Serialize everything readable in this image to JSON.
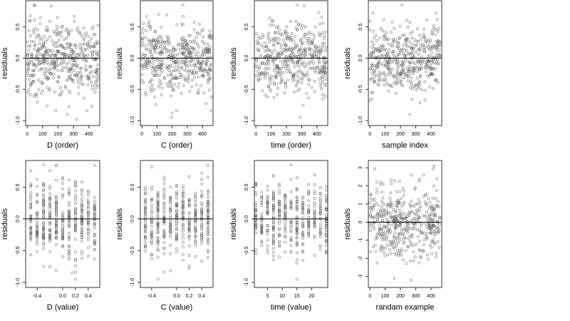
{
  "style": {
    "point_color": "#555555",
    "line_color": "#000000",
    "background": "#ffffff"
  },
  "chart_data": [
    {
      "id": "d-order",
      "type": "scatter",
      "xlabel": "D (order)",
      "ylabel": "residuals",
      "xlim": [
        -10,
        470
      ],
      "ylim": [
        -1.08,
        0.92
      ],
      "xticks": [
        0,
        100,
        200,
        300,
        400
      ],
      "xtick_labels": [
        "0",
        "100",
        "200",
        "300",
        "400"
      ],
      "yticks": [
        -1.0,
        -0.5,
        0.0,
        0.5
      ],
      "ytick_labels": [
        "-1.0",
        "-0.5",
        "0.0",
        "0.5"
      ],
      "hline": 0,
      "n_points": 460,
      "points": [],
      "envelope": {
        "x_range": [
          0,
          460
        ],
        "spread": 0.28,
        "outliers": [
          [
            5,
            -0.55
          ],
          [
            45,
            0.85
          ],
          [
            260,
            -0.9
          ],
          [
            320,
            -0.98
          ],
          [
            380,
            0.02
          ]
        ]
      }
    },
    {
      "id": "c-order",
      "type": "scatter",
      "xlabel": "C (order)",
      "ylabel": "residuals",
      "xlim": [
        -10,
        470
      ],
      "ylim": [
        -1.08,
        0.92
      ],
      "xticks": [
        0,
        100,
        200,
        300,
        400
      ],
      "xtick_labels": [
        "0",
        "100",
        "200",
        "300",
        "400"
      ],
      "yticks": [
        -1.0,
        -0.5,
        0.0,
        0.5
      ],
      "ytick_labels": [
        "-1.0",
        "-0.5",
        "0.0",
        "0.5"
      ],
      "hline": 0,
      "n_points": 460,
      "points": [],
      "envelope": {
        "x_range": [
          0,
          460
        ],
        "spread": 0.28,
        "outliers": [
          [
            195,
            -0.95
          ],
          [
            200,
            -0.88
          ],
          [
            270,
            0.85
          ],
          [
            110,
            0.7
          ]
        ]
      }
    },
    {
      "id": "time-order",
      "type": "scatter",
      "xlabel": "time (order)",
      "ylabel": "residuals",
      "xlim": [
        -10,
        470
      ],
      "ylim": [
        -1.08,
        0.92
      ],
      "xticks": [
        0,
        100,
        200,
        300,
        400
      ],
      "xtick_labels": [
        "0",
        "100",
        "200",
        "300",
        "400"
      ],
      "yticks": [
        -1.0,
        -0.5,
        0.0,
        0.5
      ],
      "ytick_labels": [
        "-1.0",
        "-0.5",
        "0.0",
        "0.5"
      ],
      "hline": 0,
      "n_points": 460,
      "points": [],
      "envelope": {
        "x_range": [
          0,
          460
        ],
        "spread": 0.28,
        "outliers": [
          [
            270,
            0.85
          ],
          [
            290,
            -0.95
          ],
          [
            110,
            0.6
          ]
        ]
      }
    },
    {
      "id": "sample-index",
      "type": "scatter",
      "xlabel": "sample index",
      "ylabel": "residuals",
      "xlim": [
        -10,
        470
      ],
      "ylim": [
        -1.08,
        0.92
      ],
      "xticks": [
        0,
        100,
        200,
        300,
        400
      ],
      "xtick_labels": [
        "0",
        "100",
        "200",
        "300",
        "400"
      ],
      "yticks": [
        -1.0,
        -0.5,
        0.0,
        0.5
      ],
      "ytick_labels": [
        "-1.0",
        "-0.5",
        "0.0",
        "0.5"
      ],
      "hline": 0,
      "n_points": 460,
      "points": [],
      "envelope": {
        "x_range": [
          0,
          460
        ],
        "spread": 0.28,
        "outliers": [
          [
            210,
            0.85
          ],
          [
            260,
            -0.9
          ],
          [
            10,
            -0.55
          ]
        ]
      }
    },
    {
      "id": "d-value",
      "type": "scatter",
      "xlabel": "D (value)",
      "ylabel": "residuals",
      "xlim": [
        -0.58,
        0.58
      ],
      "ylim": [
        -1.08,
        0.92
      ],
      "xticks": [
        -0.4,
        0.0,
        0.2,
        0.4
      ],
      "xtick_labels": [
        "-0.4",
        "0.0",
        "0.2",
        "0.4"
      ],
      "yticks": [
        -1.0,
        -0.5,
        0.0,
        0.5
      ],
      "ytick_labels": [
        "-1.0",
        "-0.5",
        "0.0",
        "0.5"
      ],
      "hline": 0,
      "n_points": 420,
      "points": [],
      "envelope": {
        "x_discrete": [
          -0.5,
          -0.4,
          -0.3,
          -0.2,
          -0.1,
          0.0,
          0.1,
          0.2,
          0.3,
          0.4,
          0.5
        ],
        "spread": 0.28,
        "outliers": [
          [
            -0.3,
            0.85
          ],
          [
            0.15,
            -0.85
          ],
          [
            0.2,
            -0.95
          ]
        ]
      }
    },
    {
      "id": "c-value",
      "type": "scatter",
      "xlabel": "C (value)",
      "ylabel": "residuals",
      "xlim": [
        -0.58,
        0.58
      ],
      "ylim": [
        -1.08,
        0.92
      ],
      "xticks": [
        -0.4,
        0.0,
        0.2,
        0.4
      ],
      "xtick_labels": [
        "-0.4",
        "0.0",
        "0.2",
        "0.4"
      ],
      "yticks": [
        -1.0,
        -0.5,
        0.0,
        0.5
      ],
      "ytick_labels": [
        "-1.0",
        "-0.5",
        "0.0",
        "0.5"
      ],
      "hline": 0,
      "n_points": 420,
      "points": [],
      "envelope": {
        "x_discrete": [
          -0.5,
          -0.4,
          -0.3,
          -0.2,
          -0.1,
          0.0,
          0.1,
          0.2,
          0.3,
          0.4,
          0.5
        ],
        "spread": 0.28,
        "outliers": [
          [
            -0.3,
            -0.95
          ],
          [
            -0.4,
            0.82
          ],
          [
            0.1,
            -0.65
          ]
        ]
      }
    },
    {
      "id": "time-value",
      "type": "scatter",
      "xlabel": "time (value)",
      "ylabel": "residuals",
      "xlim": [
        0.5,
        25.5
      ],
      "ylim": [
        -1.08,
        0.92
      ],
      "xticks": [
        5,
        10,
        15,
        20
      ],
      "xtick_labels": [
        "5",
        "10",
        "15",
        "20"
      ],
      "yticks": [
        -1.0,
        -0.5,
        0.0,
        0.5
      ],
      "ytick_labels": [
        "-1.0",
        "-0.5",
        "0.0",
        "0.5"
      ],
      "hline": 0,
      "n_points": 420,
      "points": [],
      "envelope": {
        "x_discrete": [
          1,
          3,
          5,
          7,
          9,
          11,
          13,
          15,
          17,
          19,
          21,
          23,
          25
        ],
        "spread": 0.28,
        "outliers": [
          [
            13,
            0.85
          ],
          [
            15,
            -0.95
          ],
          [
            9,
            -0.6
          ]
        ]
      }
    },
    {
      "id": "random-example",
      "type": "scatter",
      "xlabel": "randam example",
      "ylabel": "residuals",
      "xlim": [
        -10,
        470
      ],
      "ylim": [
        -3.6,
        3.4
      ],
      "xticks": [
        0,
        100,
        200,
        300,
        400
      ],
      "xtick_labels": [
        "0",
        "100",
        "200",
        "300",
        "400"
      ],
      "yticks": [
        -3,
        -2,
        -1,
        0,
        1,
        2,
        3
      ],
      "ytick_labels": [
        "-3",
        "-2",
        "-1",
        "0",
        "1",
        "2",
        "3"
      ],
      "hline": 0,
      "n_points": 460,
      "points": [],
      "envelope": {
        "x_range": [
          0,
          460
        ],
        "spread": 1.0,
        "outliers": [
          [
            420,
            3.1
          ],
          [
            270,
            -3.2
          ],
          [
            350,
            2.6
          ],
          [
            160,
            -3.1
          ]
        ]
      }
    }
  ]
}
